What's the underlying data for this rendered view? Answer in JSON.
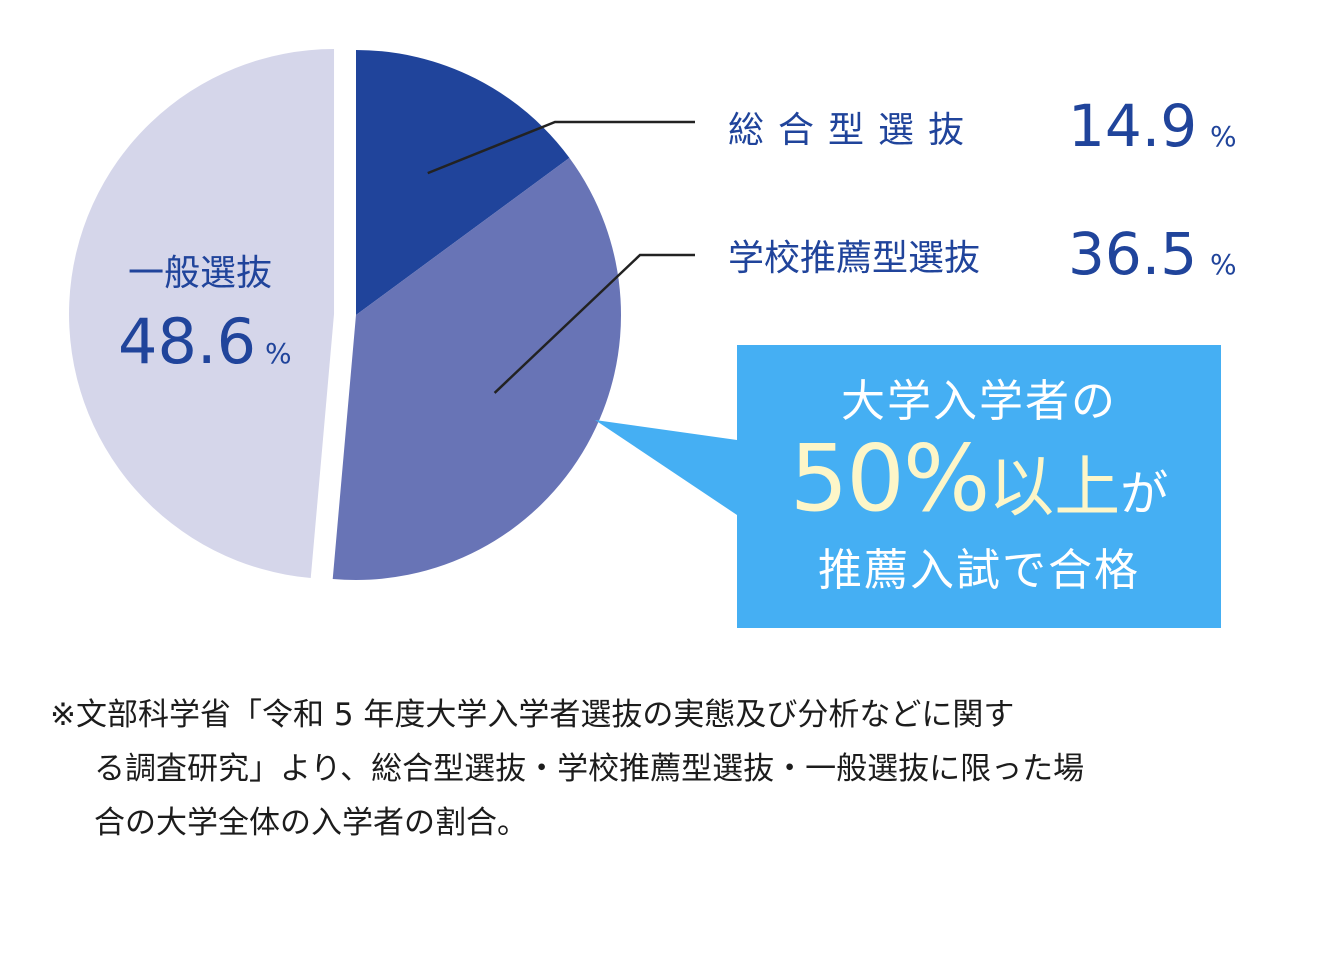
{
  "chart_data": {
    "type": "pie",
    "slices": [
      {
        "label": "総合型選抜",
        "value": 14.9,
        "value_text": "14.9",
        "unit": "%",
        "color": "#20449b"
      },
      {
        "label": "学校推薦型選抜",
        "value": 36.5,
        "value_text": "36.5",
        "unit": "%",
        "color": "#6874b6"
      },
      {
        "label": "一般選抜",
        "value": 48.6,
        "value_text": "48.6",
        "unit": "%",
        "color": "#d5d6ea"
      }
    ],
    "label_color": "#20449b",
    "leader_color": "#222222",
    "exploded_slice": "一般選抜"
  },
  "callout": {
    "line1": "大学入学者の",
    "big_value": "50%",
    "big_suffix": "以上",
    "small_suffix": "が",
    "line3": "推薦入試で合格",
    "bg_color": "#45aff3",
    "highlight_color": "#fdf6c8"
  },
  "footnote": {
    "line1": "※文部科学省「令和 5 年度大学入学者選抜の実態及び分析などに関す",
    "line2": "る調査研究」より、総合型選抜・学校推薦型選抜・一般選抜に限った場",
    "line3": "合の大学全体の入学者の割合。"
  }
}
